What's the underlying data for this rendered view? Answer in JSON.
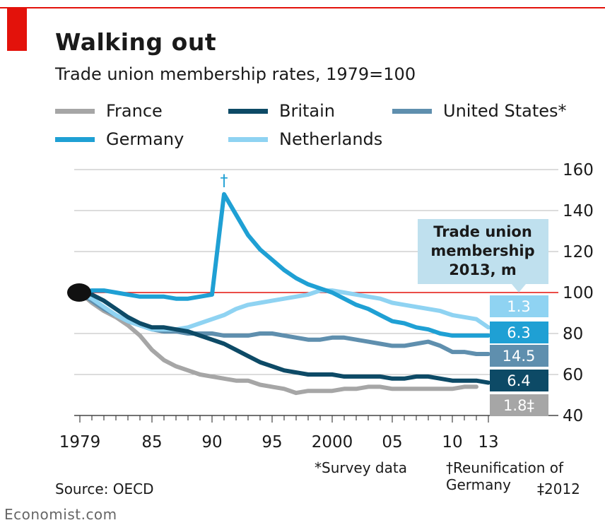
{
  "header": {
    "title": "Walking out",
    "subtitle": "Trade union membership rates, 1979=100"
  },
  "chart_data": {
    "type": "line",
    "y_label_unit": "",
    "ylim": [
      40,
      160
    ],
    "yticks": [
      40,
      60,
      80,
      100,
      120,
      140,
      160
    ],
    "xlim": [
      1979,
      2013
    ],
    "x_tick_labels": [
      "1979",
      "85",
      "90",
      "95",
      "2000",
      "05",
      "10",
      "13"
    ],
    "x_tick_values": [
      1979,
      1985,
      1990,
      1995,
      2000,
      2005,
      2010,
      2013
    ],
    "reference_line": 100,
    "series": [
      {
        "name": "France",
        "color": "#a6a6a6",
        "label": "1.8‡",
        "x": [
          1979,
          1980,
          1981,
          1982,
          1983,
          1984,
          1985,
          1986,
          1987,
          1988,
          1989,
          1990,
          1991,
          1992,
          1993,
          1994,
          1995,
          1996,
          1997,
          1998,
          1999,
          2000,
          2001,
          2002,
          2003,
          2004,
          2005,
          2006,
          2007,
          2008,
          2009,
          2010,
          2011,
          2012
        ],
        "y": [
          100,
          95,
          91,
          88,
          84,
          79,
          72,
          67,
          64,
          62,
          60,
          59,
          58,
          57,
          57,
          55,
          54,
          53,
          51,
          52,
          52,
          52,
          53,
          53,
          54,
          54,
          53,
          53,
          53,
          53,
          53,
          53,
          54,
          54
        ]
      },
      {
        "name": "Britain",
        "color": "#0d4a66",
        "label": "6.4",
        "x": [
          1979,
          1980,
          1981,
          1982,
          1983,
          1984,
          1985,
          1986,
          1987,
          1988,
          1989,
          1990,
          1991,
          1992,
          1993,
          1994,
          1995,
          1996,
          1997,
          1998,
          1999,
          2000,
          2001,
          2002,
          2003,
          2004,
          2005,
          2006,
          2007,
          2008,
          2009,
          2010,
          2011,
          2012,
          2013
        ],
        "y": [
          100,
          99,
          96,
          92,
          88,
          85,
          83,
          83,
          82,
          81,
          79,
          77,
          75,
          72,
          69,
          66,
          64,
          62,
          61,
          60,
          60,
          60,
          59,
          59,
          59,
          59,
          58,
          58,
          59,
          59,
          58,
          57,
          57,
          57,
          56
        ]
      },
      {
        "name": "United States*",
        "color": "#5f8fae",
        "label": "14.5",
        "x": [
          1979,
          1980,
          1981,
          1982,
          1983,
          1984,
          1985,
          1986,
          1987,
          1988,
          1989,
          1990,
          1991,
          1992,
          1993,
          1994,
          1995,
          1996,
          1997,
          1998,
          1999,
          2000,
          2001,
          2002,
          2003,
          2004,
          2005,
          2006,
          2007,
          2008,
          2009,
          2010,
          2011,
          2012,
          2013
        ],
        "y": [
          100,
          96,
          92,
          89,
          86,
          84,
          82,
          81,
          81,
          80,
          80,
          80,
          79,
          79,
          79,
          80,
          80,
          79,
          78,
          77,
          77,
          78,
          78,
          77,
          76,
          75,
          74,
          74,
          75,
          76,
          74,
          71,
          71,
          70,
          70
        ]
      },
      {
        "name": "Germany",
        "color": "#1fa0d4",
        "label": "6.3",
        "x": [
          1979,
          1980,
          1981,
          1982,
          1983,
          1984,
          1985,
          1986,
          1987,
          1988,
          1989,
          1990,
          1991,
          1992,
          1993,
          1994,
          1995,
          1996,
          1997,
          1998,
          1999,
          2000,
          2001,
          2002,
          2003,
          2004,
          2005,
          2006,
          2007,
          2008,
          2009,
          2010,
          2011,
          2012,
          2013
        ],
        "y": [
          100,
          101,
          101,
          100,
          99,
          98,
          98,
          98,
          97,
          97,
          98,
          99,
          148,
          138,
          128,
          121,
          116,
          111,
          107,
          104,
          102,
          100,
          97,
          94,
          92,
          89,
          86,
          85,
          83,
          82,
          80,
          79,
          79,
          79,
          79
        ]
      },
      {
        "name": "Netherlands",
        "color": "#8fd3f2",
        "label": "1.3",
        "x": [
          1979,
          1980,
          1981,
          1982,
          1983,
          1984,
          1985,
          1986,
          1987,
          1988,
          1989,
          1990,
          1991,
          1992,
          1993,
          1994,
          1995,
          1996,
          1997,
          1998,
          1999,
          2000,
          2001,
          2002,
          2003,
          2004,
          2005,
          2006,
          2007,
          2008,
          2009,
          2010,
          2011,
          2012,
          2013
        ],
        "y": [
          100,
          97,
          93,
          89,
          86,
          84,
          82,
          82,
          82,
          83,
          85,
          87,
          89,
          92,
          94,
          95,
          96,
          97,
          98,
          99,
          101,
          101,
          100,
          99,
          98,
          97,
          95,
          94,
          93,
          92,
          91,
          89,
          88,
          87,
          83
        ]
      }
    ],
    "annotation_box": "Trade union membership 2013, m",
    "dagger_mark": "†"
  },
  "notes": {
    "survey": "*Survey data",
    "reunification": "†Reunification of Germany",
    "year_2012": "‡2012",
    "source": "Source: OECD",
    "brand": "Economist.com"
  },
  "colors": {
    "accent": "#e3120b",
    "grid": "#b9b9b9",
    "axis": "#444444"
  }
}
